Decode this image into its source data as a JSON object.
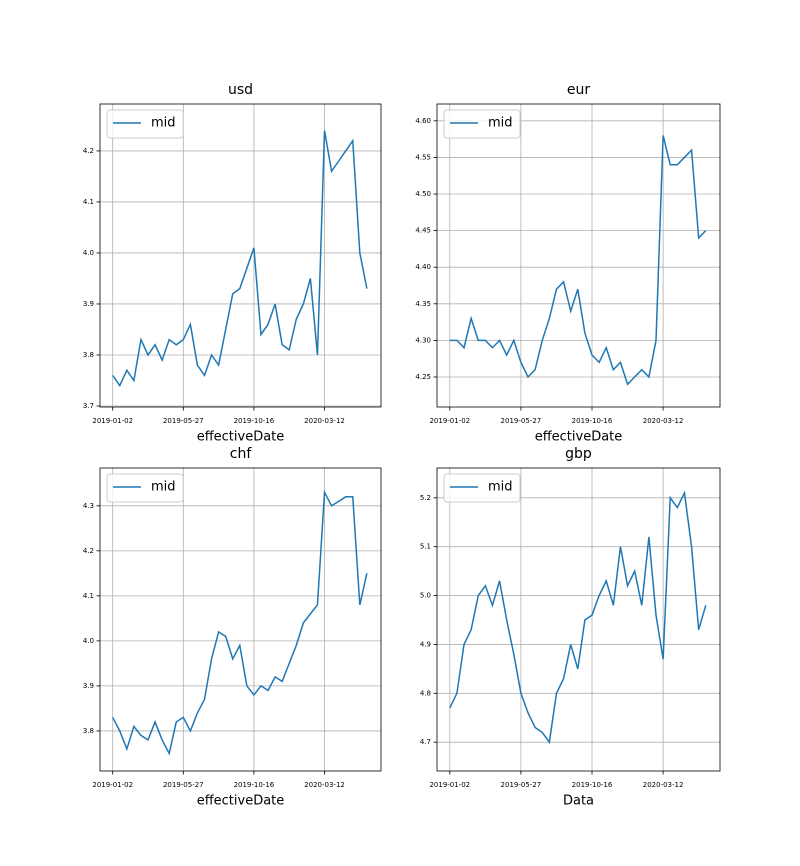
{
  "chart_data": [
    {
      "type": "line",
      "title": "usd",
      "xlabel": "effectiveDate",
      "legend": "upper left",
      "grid": true,
      "x": [
        0,
        10,
        20,
        30,
        40,
        50,
        60,
        70,
        80,
        90,
        100,
        110,
        120,
        130,
        140,
        150,
        160,
        170,
        180,
        190,
        200,
        210,
        220,
        230,
        240,
        250,
        260,
        270,
        280,
        290,
        300,
        310,
        320,
        330,
        340,
        350,
        360
      ],
      "series": [
        {
          "name": "mid",
          "color": "#1f77b4",
          "values": [
            3.76,
            3.74,
            3.77,
            3.75,
            3.83,
            3.8,
            3.82,
            3.79,
            3.83,
            3.82,
            3.83,
            3.86,
            3.78,
            3.76,
            3.8,
            3.78,
            3.85,
            3.92,
            3.93,
            3.97,
            4.01,
            3.84,
            3.86,
            3.9,
            3.82,
            3.81,
            3.87,
            3.9,
            3.95,
            3.8,
            4.24,
            4.16,
            4.18,
            4.2,
            4.22,
            4.0,
            3.93
          ]
        }
      ],
      "xlim": [
        -18,
        380
      ],
      "ylim": [
        3.698,
        4.292
      ],
      "xticks": [
        {
          "value": 0,
          "label": "2019-01-02"
        },
        {
          "value": 100,
          "label": "2019-05-27"
        },
        {
          "value": 200,
          "label": "2019-10-16"
        },
        {
          "value": 300,
          "label": "2020-03-12"
        }
      ],
      "yticks": [
        3.7,
        3.8,
        3.9,
        {
          "value": 4,
          "label": "4.0"
        },
        4.1,
        4.2
      ]
    },
    {
      "type": "line",
      "title": "eur",
      "xlabel": "effectiveDate",
      "legend": "upper left",
      "grid": true,
      "x": [
        0,
        10,
        20,
        30,
        40,
        50,
        60,
        70,
        80,
        90,
        100,
        110,
        120,
        130,
        140,
        150,
        160,
        170,
        180,
        190,
        200,
        210,
        220,
        230,
        240,
        250,
        260,
        270,
        280,
        290,
        300,
        310,
        320,
        330,
        340,
        350,
        360
      ],
      "series": [
        {
          "name": "mid",
          "color": "#1f77b4",
          "values": [
            4.3,
            4.3,
            4.29,
            4.33,
            4.3,
            4.3,
            4.29,
            4.3,
            4.28,
            4.3,
            4.27,
            4.25,
            4.26,
            4.3,
            4.33,
            4.37,
            4.38,
            4.34,
            4.37,
            4.31,
            4.28,
            4.27,
            4.29,
            4.26,
            4.27,
            4.24,
            4.25,
            4.26,
            4.25,
            4.3,
            4.58,
            4.54,
            4.54,
            4.55,
            4.56,
            4.44,
            4.45
          ]
        }
      ],
      "xlim": [
        -18,
        380
      ],
      "ylim": [
        4.209,
        4.623
      ],
      "xticks": [
        {
          "value": 0,
          "label": "2019-01-02"
        },
        {
          "value": 100,
          "label": "2019-05-27"
        },
        {
          "value": 200,
          "label": "2019-10-16"
        },
        {
          "value": 300,
          "label": "2020-03-12"
        }
      ],
      "yticks": [
        4.25,
        {
          "value": 4.3,
          "label": "4.30"
        },
        4.35,
        {
          "value": 4.4,
          "label": "4.40"
        },
        4.45,
        {
          "value": 4.5,
          "label": "4.50"
        },
        4.55,
        {
          "value": 4.6,
          "label": "4.60"
        }
      ]
    },
    {
      "type": "line",
      "title": "chf",
      "xlabel": "effectiveDate",
      "legend": "upper left",
      "grid": true,
      "x": [
        0,
        10,
        20,
        30,
        40,
        50,
        60,
        70,
        80,
        90,
        100,
        110,
        120,
        130,
        140,
        150,
        160,
        170,
        180,
        190,
        200,
        210,
        220,
        230,
        240,
        250,
        260,
        270,
        280,
        290,
        300,
        310,
        320,
        330,
        340,
        350,
        360
      ],
      "series": [
        {
          "name": "mid",
          "color": "#1f77b4",
          "values": [
            3.83,
            3.8,
            3.76,
            3.81,
            3.79,
            3.78,
            3.82,
            3.78,
            3.75,
            3.82,
            3.83,
            3.8,
            3.84,
            3.87,
            3.96,
            4.02,
            4.01,
            3.96,
            3.99,
            3.9,
            3.88,
            3.9,
            3.89,
            3.92,
            3.91,
            3.95,
            3.99,
            4.04,
            4.06,
            4.08,
            4.33,
            4.3,
            4.31,
            4.32,
            4.32,
            4.08,
            4.15
          ]
        }
      ],
      "xlim": [
        -18,
        380
      ],
      "ylim": [
        3.711,
        4.384
      ],
      "xticks": [
        {
          "value": 0,
          "label": "2019-01-02"
        },
        {
          "value": 100,
          "label": "2019-05-27"
        },
        {
          "value": 200,
          "label": "2019-10-16"
        },
        {
          "value": 300,
          "label": "2020-03-12"
        }
      ],
      "yticks": [
        3.8,
        3.9,
        {
          "value": 4,
          "label": "4.0"
        },
        4.1,
        4.2,
        4.3
      ]
    },
    {
      "type": "line",
      "title": "gbp",
      "xlabel": "Data",
      "legend": "upper left",
      "grid": true,
      "x": [
        0,
        10,
        20,
        30,
        40,
        50,
        60,
        70,
        80,
        90,
        100,
        110,
        120,
        130,
        140,
        150,
        160,
        170,
        180,
        190,
        200,
        210,
        220,
        230,
        240,
        250,
        260,
        270,
        280,
        290,
        300,
        310,
        320,
        330,
        340,
        350,
        360
      ],
      "series": [
        {
          "name": "mid",
          "color": "#1f77b4",
          "values": [
            4.77,
            4.8,
            4.9,
            4.93,
            5.0,
            5.02,
            4.98,
            5.03,
            4.95,
            4.88,
            4.8,
            4.76,
            4.73,
            4.72,
            4.7,
            4.8,
            4.83,
            4.9,
            4.85,
            4.95,
            4.96,
            5.0,
            5.03,
            4.98,
            5.1,
            5.02,
            5.05,
            4.98,
            5.12,
            4.96,
            4.87,
            5.2,
            5.18,
            5.21,
            5.1,
            4.93,
            4.98
          ]
        }
      ],
      "xlim": [
        -18,
        380
      ],
      "ylim": [
        4.641,
        5.261
      ],
      "xticks": [
        {
          "value": 0,
          "label": "2019-01-02"
        },
        {
          "value": 100,
          "label": "2019-05-27"
        },
        {
          "value": 200,
          "label": "2019-10-16"
        },
        {
          "value": 300,
          "label": "2020-03-12"
        }
      ],
      "yticks": [
        4.7,
        4.8,
        4.9,
        {
          "value": 5,
          "label": "5.0"
        },
        5.1,
        5.2
      ]
    }
  ]
}
